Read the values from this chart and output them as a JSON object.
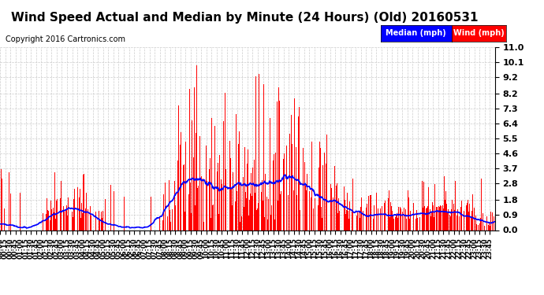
{
  "title": "Wind Speed Actual and Median by Minute (24 Hours) (Old) 20160531",
  "copyright": "Copyright 2016 Cartronics.com",
  "yticks": [
    0.0,
    0.9,
    1.8,
    2.8,
    3.7,
    4.6,
    5.5,
    6.4,
    7.3,
    8.2,
    9.2,
    10.1,
    11.0
  ],
  "ymax": 11.0,
  "ymin": 0.0,
  "bar_color": "#ff0000",
  "median_color": "#0000ff",
  "legend_median_bg": "#0000ff",
  "legend_wind_bg": "#ff0000",
  "background_color": "#ffffff",
  "grid_color": "#cccccc",
  "title_fontsize": 11,
  "minutes_per_day": 1440
}
